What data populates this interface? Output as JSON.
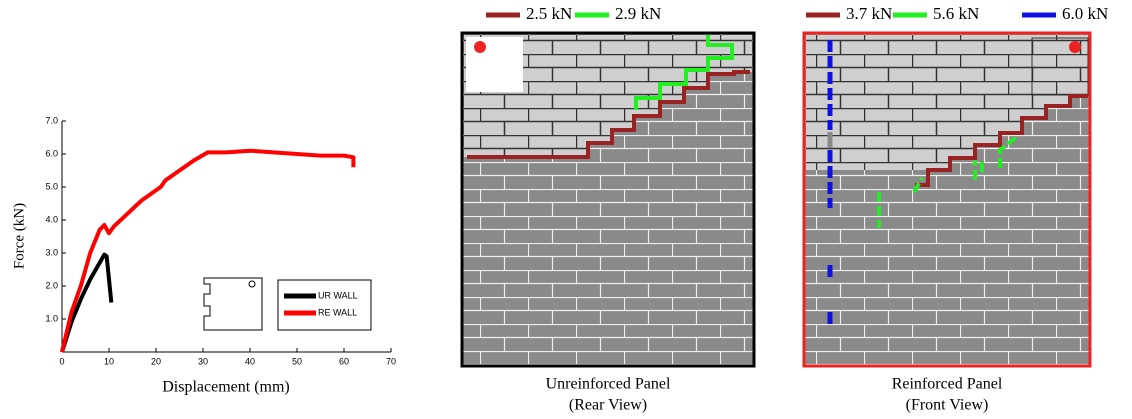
{
  "chart_data": {
    "type": "line",
    "xlabel": "Displacement (mm)",
    "ylabel": "Force (kN)",
    "xlim": [
      0,
      70
    ],
    "ylim": [
      0,
      7.2
    ],
    "xticks": [
      0,
      10,
      20,
      30,
      40,
      50,
      60,
      70
    ],
    "yticks": [
      {
        "value": 1,
        "label": "1.0"
      },
      {
        "value": 2,
        "label": "2.0"
      },
      {
        "value": 3,
        "label": "3.0"
      },
      {
        "value": 4,
        "label": "4.0"
      },
      {
        "value": 5,
        "label": "5.0"
      },
      {
        "value": 6,
        "label": "6.0"
      },
      {
        "value": 7,
        "label": "7.0"
      }
    ],
    "legend": "lower right",
    "series": [
      {
        "name": "UR WALL",
        "color": "#000000",
        "x": [
          0,
          2,
          4,
          6,
          8,
          9,
          9.5,
          10,
          10.5
        ],
        "values": [
          0,
          0.9,
          1.6,
          2.2,
          2.7,
          2.95,
          2.9,
          2.2,
          1.5
        ]
      },
      {
        "name": "RE WALL",
        "color": "#ff0000",
        "x": [
          0,
          1,
          2,
          4,
          6,
          8,
          9,
          10,
          11,
          14,
          17,
          20,
          21,
          22,
          25,
          28,
          31,
          35,
          40,
          45,
          50,
          55,
          60,
          62,
          62
        ],
        "values": [
          0,
          0.6,
          1.2,
          2.0,
          3.0,
          3.7,
          3.85,
          3.6,
          3.8,
          4.2,
          4.6,
          4.9,
          5.0,
          5.2,
          5.5,
          5.8,
          6.05,
          6.05,
          6.1,
          6.05,
          6.0,
          5.95,
          5.95,
          5.9,
          5.6
        ]
      }
    ]
  },
  "panels": [
    {
      "legend": [
        {
          "label": "2.5 kN",
          "color": "#9b2222"
        },
        {
          "label": "2.9 kN",
          "color": "#22ee22"
        }
      ],
      "caption": [
        "Unreinforced Panel",
        "(Rear View)"
      ]
    },
    {
      "legend": [
        {
          "label": "3.7 kN",
          "color": "#9b2222"
        },
        {
          "label": "5.6 kN",
          "color": "#22ee22"
        },
        {
          "label": "6.0 kN",
          "color": "#1010e0"
        }
      ],
      "caption": [
        "Reinforced Panel",
        "(Front View)"
      ]
    }
  ]
}
